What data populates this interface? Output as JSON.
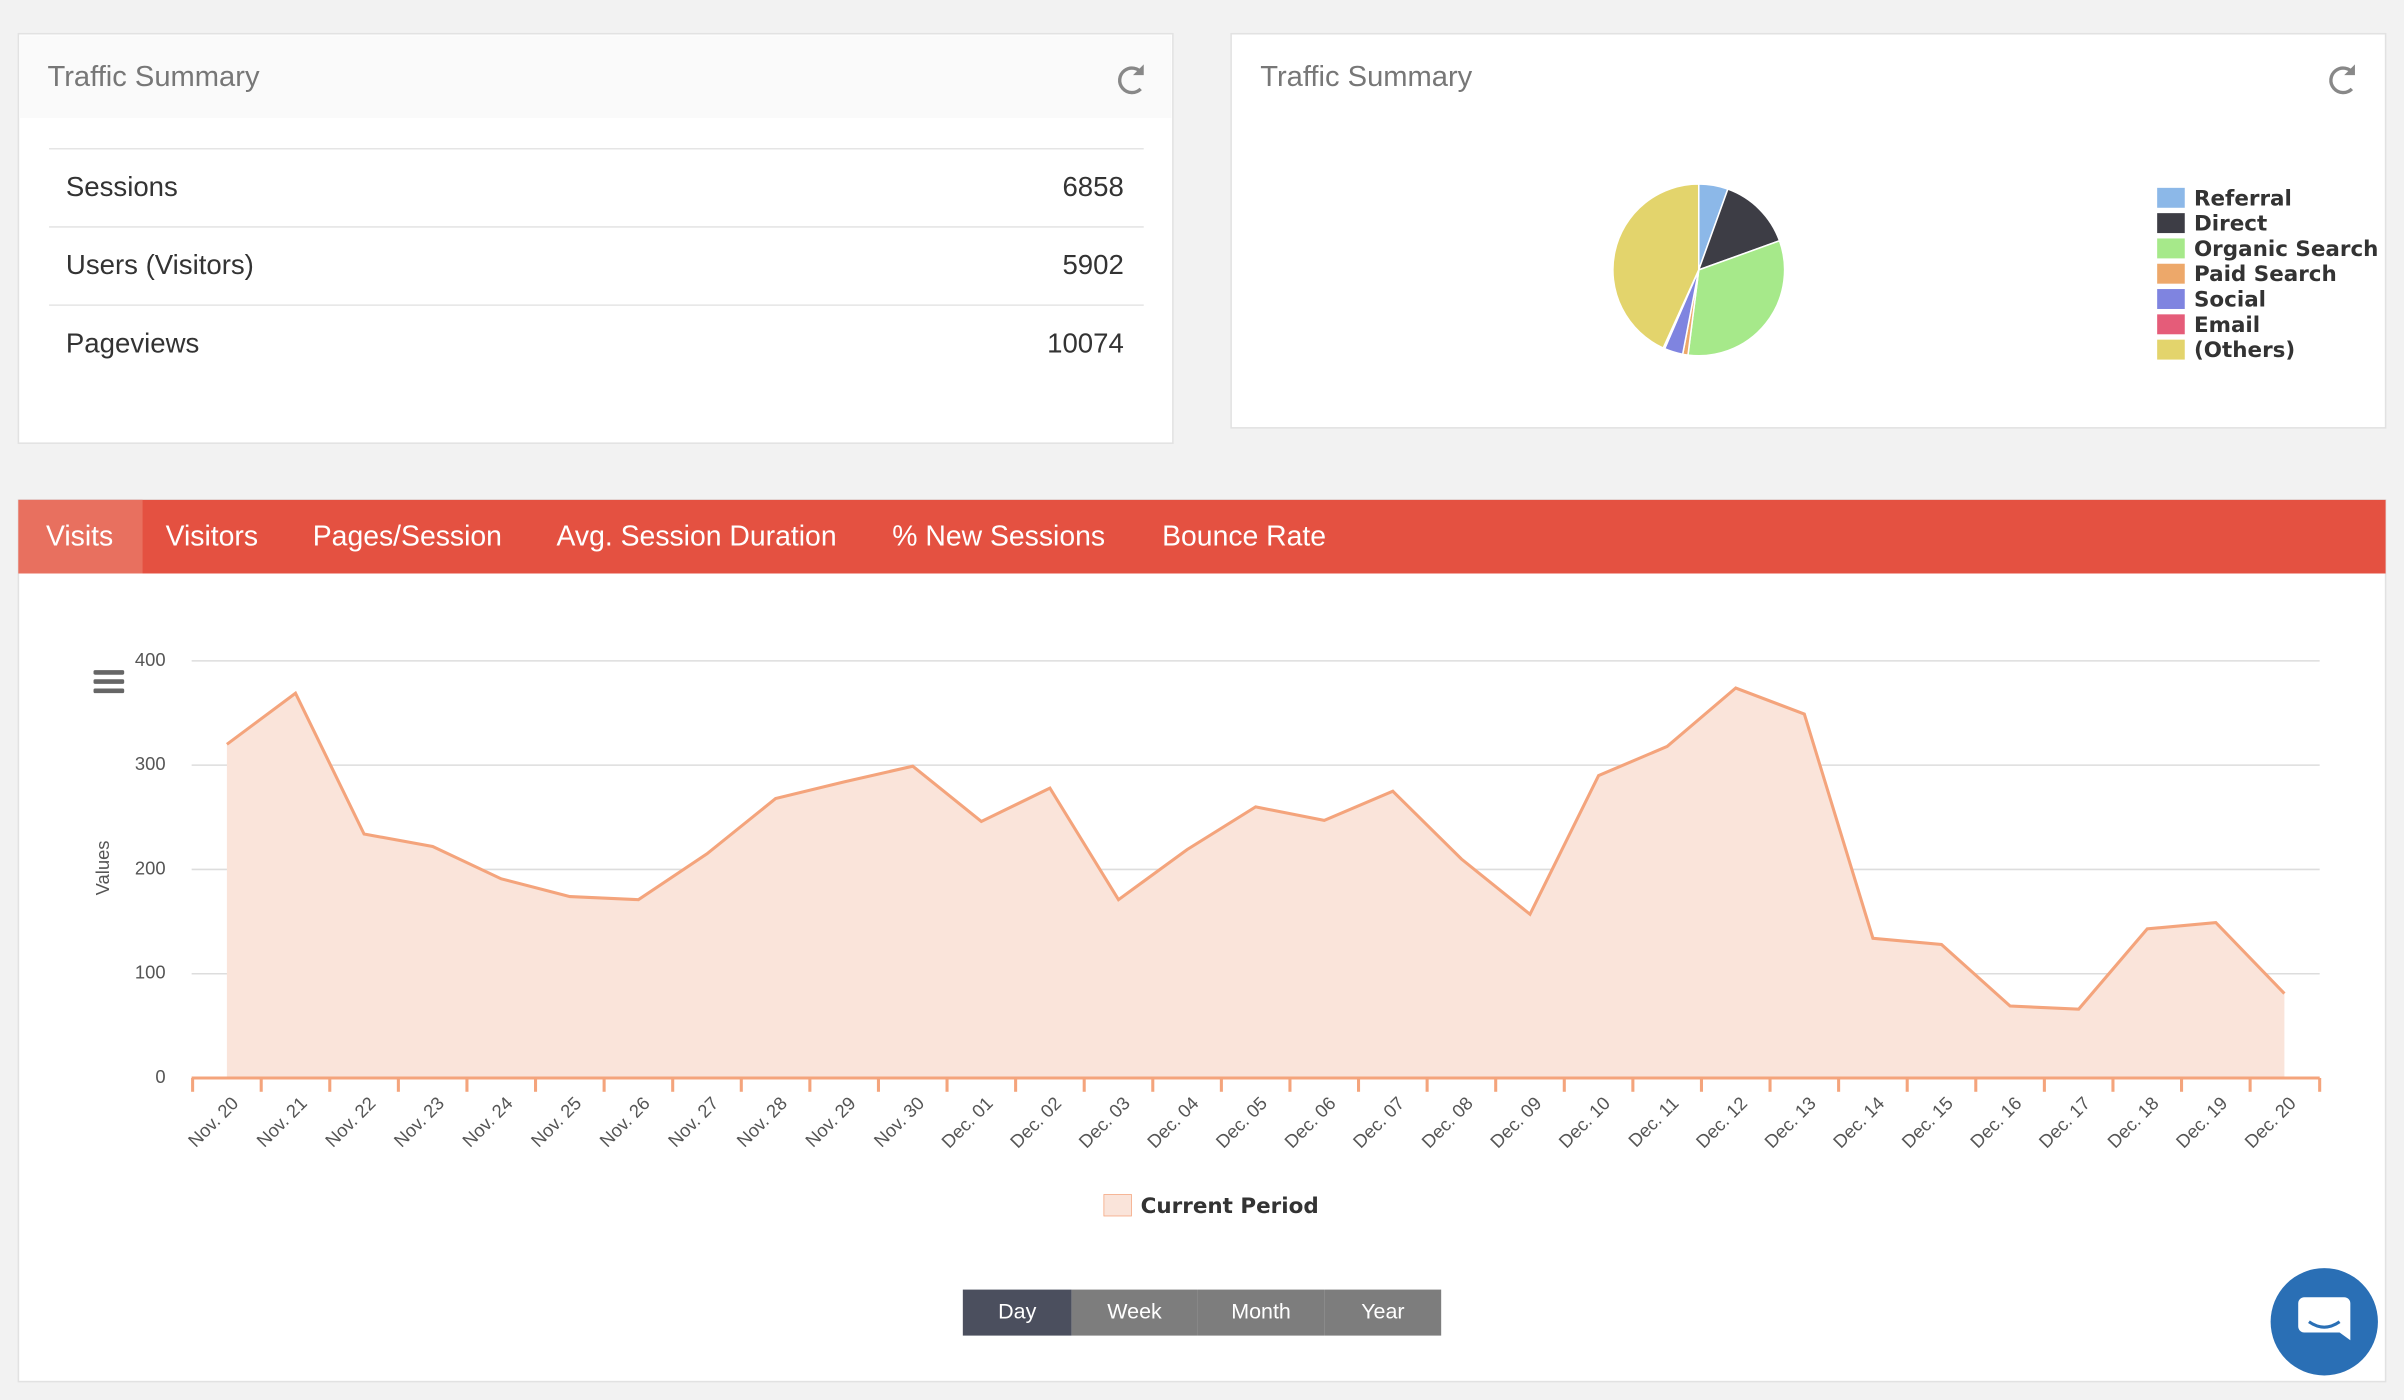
{
  "summary": {
    "title": "Traffic Summary",
    "rows": [
      [
        "Sessions",
        6858
      ],
      [
        "Users (Visitors)",
        5902
      ],
      [
        "Pageviews",
        10074
      ]
    ]
  },
  "chart_data": [
    {
      "type": "pie",
      "title": "Traffic Summary",
      "categories": [
        "Referral",
        "Direct",
        "Organic Search",
        "Paid Search",
        "Social",
        "Email",
        "(Others)"
      ],
      "values": [
        5.5,
        14,
        32.5,
        1,
        3.5,
        0.3,
        43.2
      ],
      "colors": [
        "#8cb8e8",
        "#3d3d45",
        "#a6e98a",
        "#eda86a",
        "#7f84e0",
        "#e55c79",
        "#e3d46c"
      ],
      "legend": "right"
    },
    {
      "type": "area",
      "categories": [
        "Nov. 20",
        "Nov. 21",
        "Nov. 22",
        "Nov. 23",
        "Nov. 24",
        "Nov. 25",
        "Nov. 26",
        "Nov. 27",
        "Nov. 28",
        "Nov. 29",
        "Nov. 30",
        "Dec. 01",
        "Dec. 02",
        "Dec. 03",
        "Dec. 04",
        "Dec. 05",
        "Dec. 06",
        "Dec. 07",
        "Dec. 08",
        "Dec. 09",
        "Dec. 10",
        "Dec. 11",
        "Dec. 12",
        "Dec. 13",
        "Dec. 14",
        "Dec. 15",
        "Dec. 16",
        "Dec. 17",
        "Dec. 18",
        "Dec. 19",
        "Dec. 20"
      ],
      "series": [
        {
          "name": "Current Period",
          "color": "#f4a47c",
          "fill": "#fae4da",
          "values": [
            320,
            369,
            234,
            222,
            191,
            174,
            171,
            215,
            268,
            284,
            299,
            246,
            278,
            171,
            219,
            260,
            247,
            275,
            210,
            157,
            290,
            318,
            374,
            349,
            134,
            128,
            69,
            66,
            143,
            149,
            81
          ]
        }
      ],
      "y_label": "Values",
      "ylim": [
        0,
        400
      ],
      "yticks": [
        0,
        100,
        200,
        300,
        400
      ],
      "grid": true,
      "legend": "bottom"
    }
  ],
  "tabs": [
    "Visits",
    "Visitors",
    "Pages/Session",
    "Avg. Session Duration",
    "% New Sessions",
    "Bounce Rate"
  ],
  "ranges": [
    "Day",
    "Week",
    "Month",
    "Year"
  ]
}
